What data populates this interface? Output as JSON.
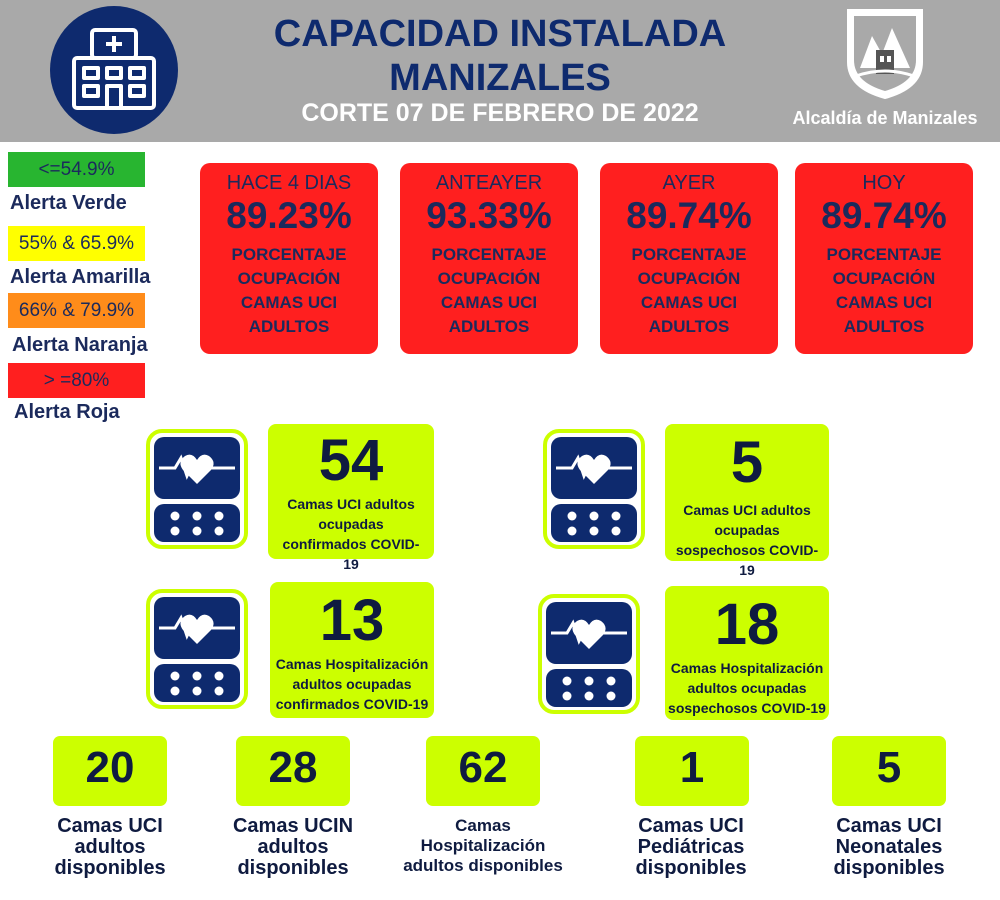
{
  "header": {
    "title_line1": "CAPACIDAD INSTALADA",
    "title_line2": "MANIZALES",
    "date_line": "CORTE 07 DE FEBRERO DE 2022",
    "logo_icon": "hospital-icon",
    "entity": "Alcaldía de Manizales",
    "crest_icon": "coat-of-arms-icon"
  },
  "legend": [
    {
      "range": "<=54.9%",
      "label": "Alerta Verde",
      "color": "#28b530"
    },
    {
      "range": "55% & 65.9%",
      "label": "Alerta Amarilla",
      "color": "#ffff00"
    },
    {
      "range": "66% & 79.9%",
      "label": "Alerta Naranja",
      "color": "#ff8c1a"
    },
    {
      "range": "> =80%",
      "label": "Alerta Roja",
      "color": "#ff1f1f"
    }
  ],
  "occupancy": [
    {
      "period": "HACE 4 DIAS",
      "value": "89.23%",
      "description": "PORCENTAJE OCUPACIÓN CAMAS UCI ADULTOS"
    },
    {
      "period": "ANTEAYER",
      "value": "93.33%",
      "description": "PORCENTAJE OCUPACIÓN CAMAS UCI ADULTOS"
    },
    {
      "period": "AYER",
      "value": "89.74%",
      "description": "PORCENTAJE OCUPACIÓN CAMAS UCI ADULTOS"
    },
    {
      "period": "HOY",
      "value": "89.74%",
      "description": "PORCENTAJE OCUPACIÓN CAMAS UCI ADULTOS"
    }
  ],
  "stats": [
    {
      "value": "54",
      "description": "Camas UCI adultos ocupadas confirmados COVID-19",
      "icon": "heart-monitor-icon"
    },
    {
      "value": "5",
      "description": "Camas UCI adultos ocupadas sospechosos COVID-19",
      "icon": "heart-monitor-icon"
    },
    {
      "value": "13",
      "description": "Camas  Hospitalización adultos ocupadas confirmados COVID-19",
      "icon": "heart-monitor-icon"
    },
    {
      "value": "18",
      "description": "Camas  Hospitalización adultos ocupadas sospechosos COVID-19",
      "icon": "heart-monitor-icon"
    }
  ],
  "available": [
    {
      "value": "20",
      "label": "Camas UCI adultos disponibles"
    },
    {
      "value": "28",
      "label": "Camas UCIN adultos disponibles"
    },
    {
      "value": "62",
      "label": "Camas Hospitalización adultos disponibles"
    },
    {
      "value": "1",
      "label": "Camas  UCI Pediátricas disponibles"
    },
    {
      "value": "5",
      "label": "Camas  UCI Neonatales disponibles"
    }
  ]
}
